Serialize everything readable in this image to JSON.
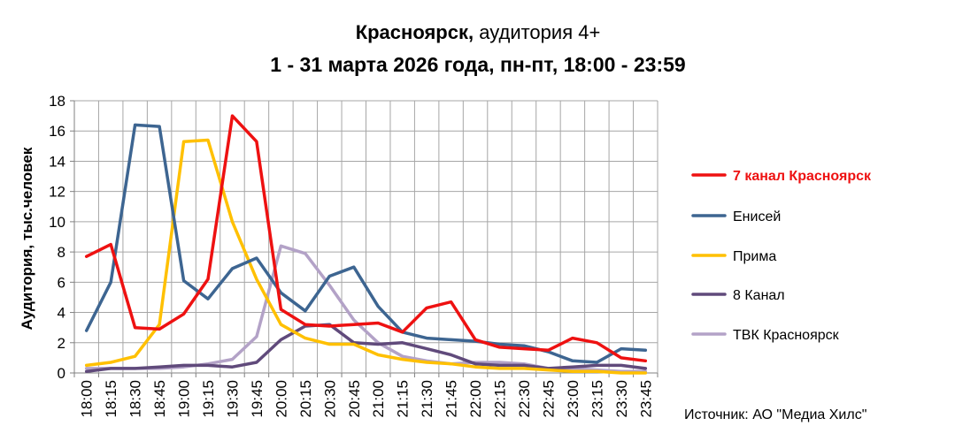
{
  "title": {
    "line1_bold": "Красноярск,",
    "line1_rest": " аудитория 4+",
    "line2": "1 - 31 марта 2026 года, пн-пт, 18:00 - 23:59"
  },
  "source": "Источник: АО \"Медиа Хилс\"",
  "colors": {
    "grid": "#a6a6a6",
    "axis": "#808080"
  },
  "chart_data": {
    "type": "line",
    "ylabel": "Аудитория, тыс.человек",
    "xlabel": "",
    "ylim": [
      0,
      18
    ],
    "yticks": [
      0,
      2,
      4,
      6,
      8,
      10,
      12,
      14,
      16,
      18
    ],
    "grid": true,
    "legend_position": "right",
    "categories": [
      "18:00",
      "18:15",
      "18:30",
      "18:45",
      "19:00",
      "19:15",
      "19:30",
      "19:45",
      "20:00",
      "20:15",
      "20:30",
      "20:45",
      "21:00",
      "21:15",
      "21:30",
      "21:45",
      "22:00",
      "22:15",
      "22:30",
      "22:45",
      "23:00",
      "23:15",
      "23:30",
      "23:45"
    ],
    "series": [
      {
        "name": "7 канал Красноярск",
        "color": "#ee1111",
        "highlight": true,
        "values": [
          7.7,
          8.5,
          3.0,
          2.9,
          3.9,
          6.2,
          17.0,
          15.3,
          4.2,
          3.2,
          3.1,
          3.2,
          3.3,
          2.7,
          4.3,
          4.7,
          2.2,
          1.7,
          1.6,
          1.5,
          2.3,
          2.0,
          1.0,
          0.8
        ]
      },
      {
        "name": "Енисей",
        "color": "#3d6591",
        "values": [
          2.8,
          6.0,
          16.4,
          16.3,
          6.1,
          4.9,
          6.9,
          7.6,
          5.3,
          4.1,
          6.4,
          7.0,
          4.4,
          2.7,
          2.3,
          2.2,
          2.1,
          1.9,
          1.8,
          1.4,
          0.8,
          0.7,
          1.6,
          1.5
        ]
      },
      {
        "name": "Прима",
        "color": "#ffc000",
        "values": [
          0.5,
          0.7,
          1.1,
          3.2,
          15.3,
          15.4,
          10.0,
          6.2,
          3.2,
          2.3,
          1.9,
          1.9,
          1.2,
          0.9,
          0.7,
          0.6,
          0.4,
          0.3,
          0.3,
          0.2,
          0.1,
          0.1,
          0.0,
          0.0
        ]
      },
      {
        "name": "8 Канал",
        "color": "#604a7b",
        "values": [
          0.1,
          0.3,
          0.3,
          0.4,
          0.5,
          0.5,
          0.4,
          0.7,
          2.2,
          3.1,
          3.2,
          2.0,
          1.9,
          2.0,
          1.6,
          1.2,
          0.6,
          0.5,
          0.5,
          0.3,
          0.4,
          0.5,
          0.5,
          0.3
        ]
      },
      {
        "name": "ТВК Красноярск",
        "color": "#b3a2c7",
        "values": [
          0.3,
          0.3,
          0.3,
          0.3,
          0.4,
          0.6,
          0.9,
          2.4,
          8.4,
          7.9,
          5.8,
          3.5,
          2.0,
          1.1,
          0.8,
          0.6,
          0.7,
          0.7,
          0.6,
          0.3,
          0.3,
          0.2,
          0.1,
          0.1
        ]
      }
    ]
  }
}
